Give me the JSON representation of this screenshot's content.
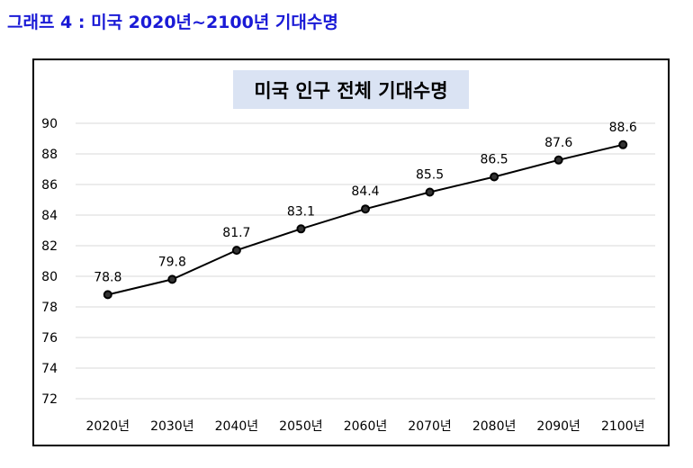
{
  "page": {
    "heading": "그래프 4 : 미국 2020년~2100년 기대수명"
  },
  "colors": {
    "heading": "#1a1ad6",
    "title_background": "#dae3f3",
    "line": "#000000",
    "gridline": "#d9d9d9"
  },
  "chart_data": {
    "type": "line",
    "title": "미국 인구 전체 기대수명",
    "categories": [
      "2020년",
      "2030년",
      "2040년",
      "2050년",
      "2060년",
      "2070년",
      "2080년",
      "2090년",
      "2100년"
    ],
    "values": [
      78.8,
      79.8,
      81.7,
      83.1,
      84.4,
      85.5,
      86.5,
      87.6,
      88.6
    ],
    "data_labels": [
      "78.8",
      "79.8",
      "81.7",
      "83.1",
      "84.4",
      "85.5",
      "86.5",
      "87.6",
      "88.6"
    ],
    "y_ticks": [
      "72",
      "74",
      "76",
      "78",
      "80",
      "82",
      "84",
      "86",
      "88",
      "90"
    ],
    "ylim": [
      72,
      90
    ],
    "grid": true,
    "legend": "none",
    "marker": "circle"
  }
}
